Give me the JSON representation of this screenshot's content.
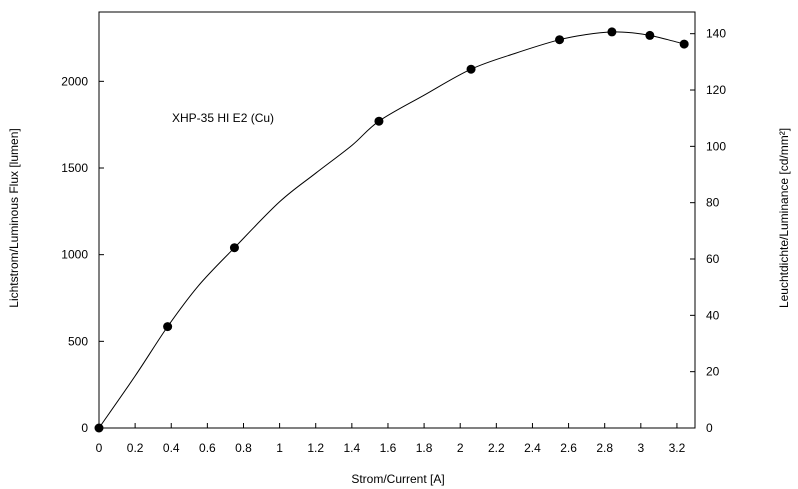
{
  "chart_data": {
    "type": "scatter",
    "annotation": "XHP-35 HI E2 (Cu)",
    "xlabel": "Strom/Current [A]",
    "ylabel": "Lichtstrom/Luminous Flux [lumen]",
    "y2label": "Leuchtdichte/Luminance [cd/mm²]",
    "xlim": [
      0,
      3.3
    ],
    "ylim": [
      0,
      2400
    ],
    "y2lim": [
      0,
      147.7
    ],
    "xticks": [
      0,
      0.2,
      0.4,
      0.6,
      0.8,
      1,
      1.2,
      1.4,
      1.6,
      1.8,
      2,
      2.2,
      2.4,
      2.6,
      2.8,
      3,
      3.2
    ],
    "yticks": [
      0,
      500,
      1000,
      1500,
      2000
    ],
    "y2ticks": [
      0,
      20,
      40,
      60,
      80,
      100,
      120,
      140
    ],
    "x_tick_labels": [
      "0",
      "0.2",
      "0.4",
      "0.6",
      "0.8",
      "1",
      "1.2",
      "1.4",
      "1.6",
      "1.8",
      "2",
      "2.2",
      "2.4",
      "2.6",
      "2.8",
      "3",
      "3.2"
    ],
    "y_tick_labels": [
      "0",
      "500",
      "1000",
      "1500",
      "2000"
    ],
    "y2_tick_labels": [
      "0",
      "20",
      "40",
      "60",
      "80",
      "100",
      "120",
      "140"
    ],
    "grid": false,
    "points": {
      "x": [
        0,
        0.38,
        0.75,
        1.55,
        2.06,
        2.55,
        2.84,
        3.05,
        3.24
      ],
      "y": [
        0,
        585,
        1040,
        1770,
        2070,
        2240,
        2285,
        2265,
        2215
      ]
    },
    "curve": {
      "x": [
        0,
        0.2,
        0.38,
        0.55,
        0.75,
        1.0,
        1.2,
        1.4,
        1.55,
        1.8,
        2.06,
        2.3,
        2.55,
        2.7,
        2.84,
        2.95,
        3.05,
        3.15,
        3.24
      ],
      "y": [
        0,
        300,
        585,
        820,
        1040,
        1305,
        1470,
        1630,
        1770,
        1920,
        2070,
        2160,
        2240,
        2270,
        2285,
        2280,
        2265,
        2240,
        2215
      ]
    }
  }
}
